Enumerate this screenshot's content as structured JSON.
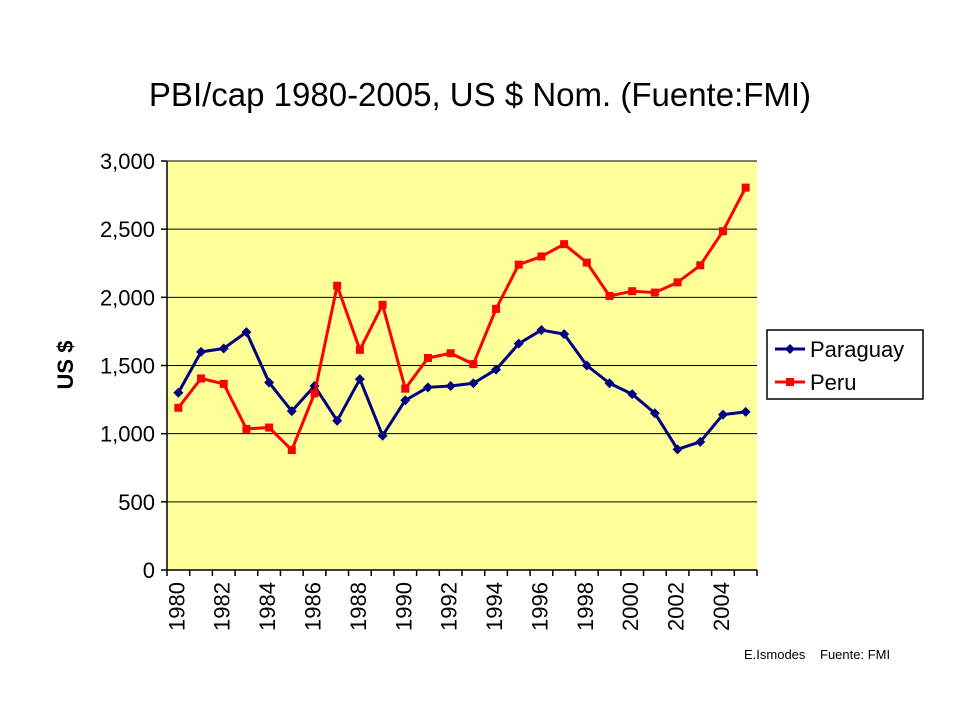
{
  "chart_data": {
    "type": "line",
    "title": "PBI/cap 1980-2005, US $ Nom. (Fuente:FMI)",
    "xlabel": "",
    "ylabel": "US $",
    "ylim": [
      0,
      3000
    ],
    "y_ticks": [
      "0",
      "500",
      "1,000",
      "1,500",
      "2,000",
      "2,500",
      "3,000"
    ],
    "x": [
      1980,
      1981,
      1982,
      1983,
      1984,
      1985,
      1986,
      1987,
      1988,
      1989,
      1990,
      1991,
      1992,
      1993,
      1994,
      1995,
      1996,
      1997,
      1998,
      1999,
      2000,
      2001,
      2002,
      2003,
      2004,
      2005
    ],
    "x_tick_labels": [
      "1980",
      "1982",
      "1984",
      "1986",
      "1988",
      "1990",
      "1992",
      "1994",
      "1996",
      "1998",
      "2000",
      "2002",
      "2004"
    ],
    "series": [
      {
        "name": "Paraguay",
        "color": "#000080",
        "marker": "diamond",
        "values": [
          1300,
          1600,
          1625,
          1745,
          1375,
          1165,
          1350,
          1095,
          1400,
          985,
          1245,
          1340,
          1350,
          1370,
          1470,
          1660,
          1760,
          1730,
          1500,
          1370,
          1290,
          1150,
          885,
          940,
          1140,
          1160
        ]
      },
      {
        "name": "Peru",
        "color": "#ff0000",
        "marker": "square",
        "values": [
          1190,
          1405,
          1365,
          1035,
          1045,
          880,
          1295,
          2085,
          1615,
          1945,
          1330,
          1555,
          1590,
          1510,
          1915,
          2240,
          2300,
          2390,
          2255,
          2010,
          2045,
          2035,
          2110,
          2235,
          2485,
          2805
        ]
      }
    ],
    "grid": true,
    "legend_position": "right",
    "plot_background": "#ffff99"
  },
  "credits": {
    "author": "E.Ismodes",
    "source": "Fuente: FMI"
  }
}
